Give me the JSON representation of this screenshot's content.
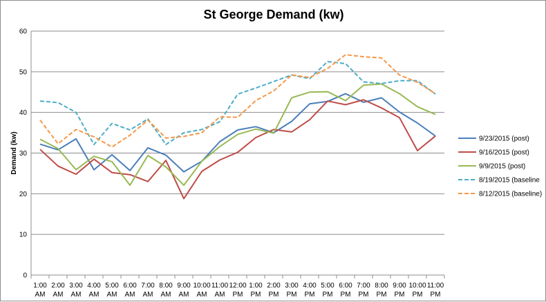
{
  "chart_data": {
    "type": "line",
    "title": "St George Demand (kw)",
    "ylabel": "Demand (kw)",
    "xlabel": "",
    "ylim": [
      0,
      60
    ],
    "yticks": [
      0,
      10,
      20,
      30,
      40,
      50,
      60
    ],
    "grid": true,
    "legend_position": "right",
    "categories": [
      [
        "1:00",
        "AM"
      ],
      [
        "2:00",
        "AM"
      ],
      [
        "3:00",
        "AM"
      ],
      [
        "4:00",
        "AM"
      ],
      [
        "5:00",
        "AM"
      ],
      [
        "6:00",
        "AM"
      ],
      [
        "7:00",
        "AM"
      ],
      [
        "8:00",
        "AM"
      ],
      [
        "9:00",
        "AM"
      ],
      [
        "10:00",
        "AM"
      ],
      [
        "11:00",
        "AM"
      ],
      [
        "12:00",
        "PM"
      ],
      [
        "1:00",
        "PM"
      ],
      [
        "2:00",
        "PM"
      ],
      [
        "3:00",
        "PM"
      ],
      [
        "4:00",
        "PM"
      ],
      [
        "5:00",
        "PM"
      ],
      [
        "6:00",
        "PM"
      ],
      [
        "7:00",
        "PM"
      ],
      [
        "8:00",
        "PM"
      ],
      [
        "9:00",
        "PM"
      ],
      [
        "10:00",
        "PM"
      ],
      [
        "11:00",
        "PM"
      ]
    ],
    "series": [
      {
        "name": "9/23/2015 (post)",
        "color": "#4a7ebb",
        "dashed": false,
        "values": [
          32.2,
          30.8,
          33.5,
          25.9,
          29.6,
          25.7,
          31.3,
          29.5,
          25.4,
          28.0,
          32.8,
          35.7,
          36.5,
          35.0,
          37.8,
          42.1,
          42.7,
          44.6,
          42.5,
          43.6,
          40.1,
          37.4,
          34.2
        ]
      },
      {
        "name": "9/16/2015 (post)",
        "color": "#be4b48",
        "dashed": false,
        "values": [
          30.9,
          26.8,
          24.8,
          28.5,
          25.2,
          24.7,
          23.0,
          28.2,
          18.8,
          25.5,
          28.3,
          30.2,
          33.8,
          35.8,
          35.2,
          38.2,
          42.8,
          41.9,
          43.1,
          41.1,
          38.7,
          30.6,
          34.2
        ]
      },
      {
        "name": "9/9/2015 (post)",
        "color": "#98b954",
        "dashed": false,
        "values": [
          33.4,
          31.1,
          25.9,
          29.2,
          27.9,
          22.1,
          29.4,
          26.6,
          22.1,
          28.0,
          31.6,
          34.6,
          35.9,
          34.9,
          43.6,
          45.0,
          45.1,
          42.9,
          46.7,
          47.0,
          44.6,
          41.4,
          39.5
        ]
      },
      {
        "name": "8/19/2015 (baseline",
        "color": "#4bacc6",
        "dashed": true,
        "values": [
          42.8,
          42.4,
          40.0,
          32.1,
          37.3,
          35.7,
          38.4,
          32.1,
          35.0,
          35.8,
          37.7,
          44.5,
          46.0,
          47.6,
          49.2,
          48.3,
          52.5,
          52.0,
          47.5,
          47.1,
          47.8,
          47.8,
          44.5
        ]
      },
      {
        "name": "8/12/2015 (baseline)",
        "color": "#f79646",
        "dashed": true,
        "values": [
          38.1,
          32.3,
          35.8,
          34.0,
          31.5,
          34.4,
          38.1,
          33.7,
          34.1,
          35.0,
          38.9,
          38.8,
          42.9,
          45.3,
          49.2,
          48.6,
          50.8,
          54.2,
          53.7,
          53.4,
          49.2,
          47.4,
          44.6
        ]
      }
    ]
  }
}
